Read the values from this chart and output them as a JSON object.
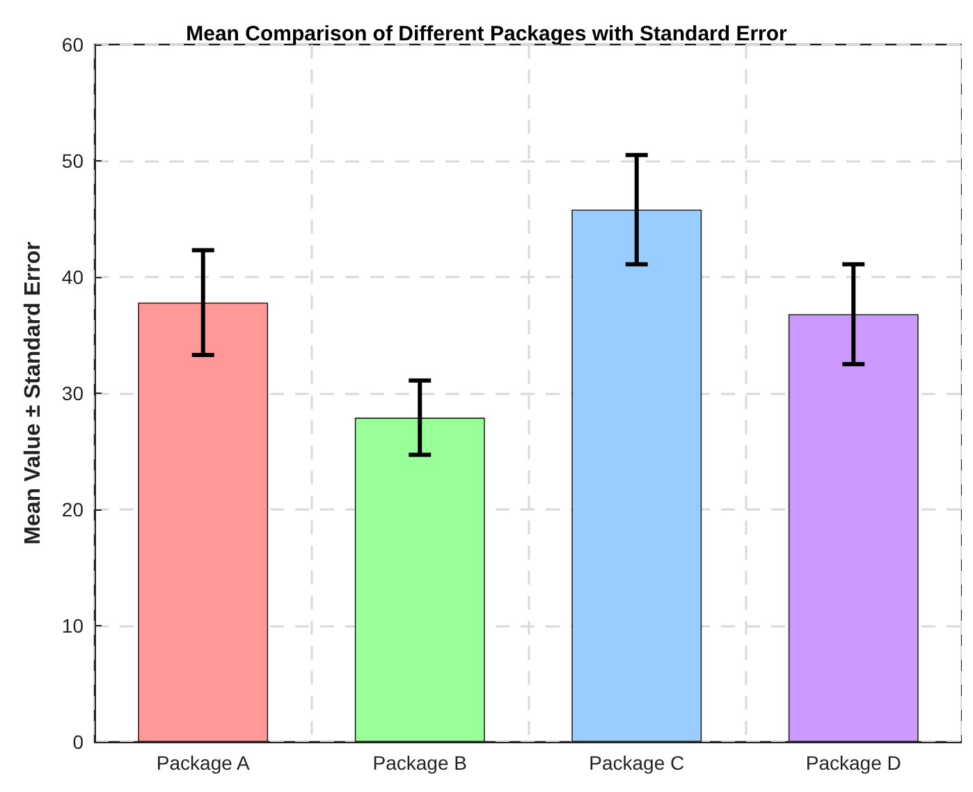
{
  "chart_data": {
    "type": "bar",
    "title": "Mean Comparison of Different Packages with Standard Error",
    "ylabel": "Mean Value ± Standard Error",
    "categories": [
      "Package A",
      "Package B",
      "Package C",
      "Package D"
    ],
    "values": [
      37.8,
      27.9,
      45.8,
      36.8
    ],
    "colors": [
      "#ff9999",
      "#99ff99",
      "#99ccff",
      "#cc99ff"
    ],
    "errors": [
      4.5,
      3.2,
      4.7,
      4.3
    ],
    "ylim": [
      0,
      60
    ],
    "yticks": [
      0,
      10,
      20,
      30,
      40,
      50,
      60
    ],
    "grid": true
  }
}
